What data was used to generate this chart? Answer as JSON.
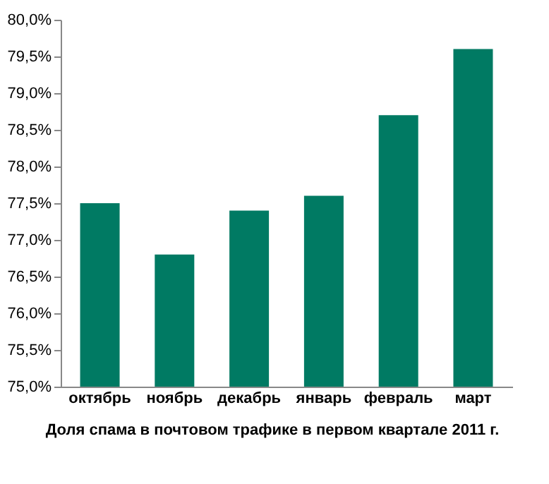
{
  "chart_data": {
    "type": "bar",
    "title": "Доля спама в почтовом трафике в первом квартале 2011 г.",
    "categories": [
      "октябрь",
      "ноябрь",
      "декабрь",
      "январь",
      "февраль",
      "март"
    ],
    "values": [
      77.5,
      76.8,
      77.4,
      77.6,
      78.7,
      79.6
    ],
    "color": "#007a63",
    "ylim": [
      75.0,
      80.0
    ],
    "yticks": [
      {
        "value": 75.0,
        "label": "75,0%"
      },
      {
        "value": 75.5,
        "label": "75,5%"
      },
      {
        "value": 76.0,
        "label": "76,0%"
      },
      {
        "value": 76.5,
        "label": "76,5%"
      },
      {
        "value": 77.0,
        "label": "77,0%"
      },
      {
        "value": 77.5,
        "label": "77,5%"
      },
      {
        "value": 78.0,
        "label": "78,0%"
      },
      {
        "value": 78.5,
        "label": "78,5%"
      },
      {
        "value": 79.0,
        "label": "79,0%"
      },
      {
        "value": 79.5,
        "label": "79,5%"
      },
      {
        "value": 80.0,
        "label": "80,0%"
      }
    ],
    "grid": false
  }
}
